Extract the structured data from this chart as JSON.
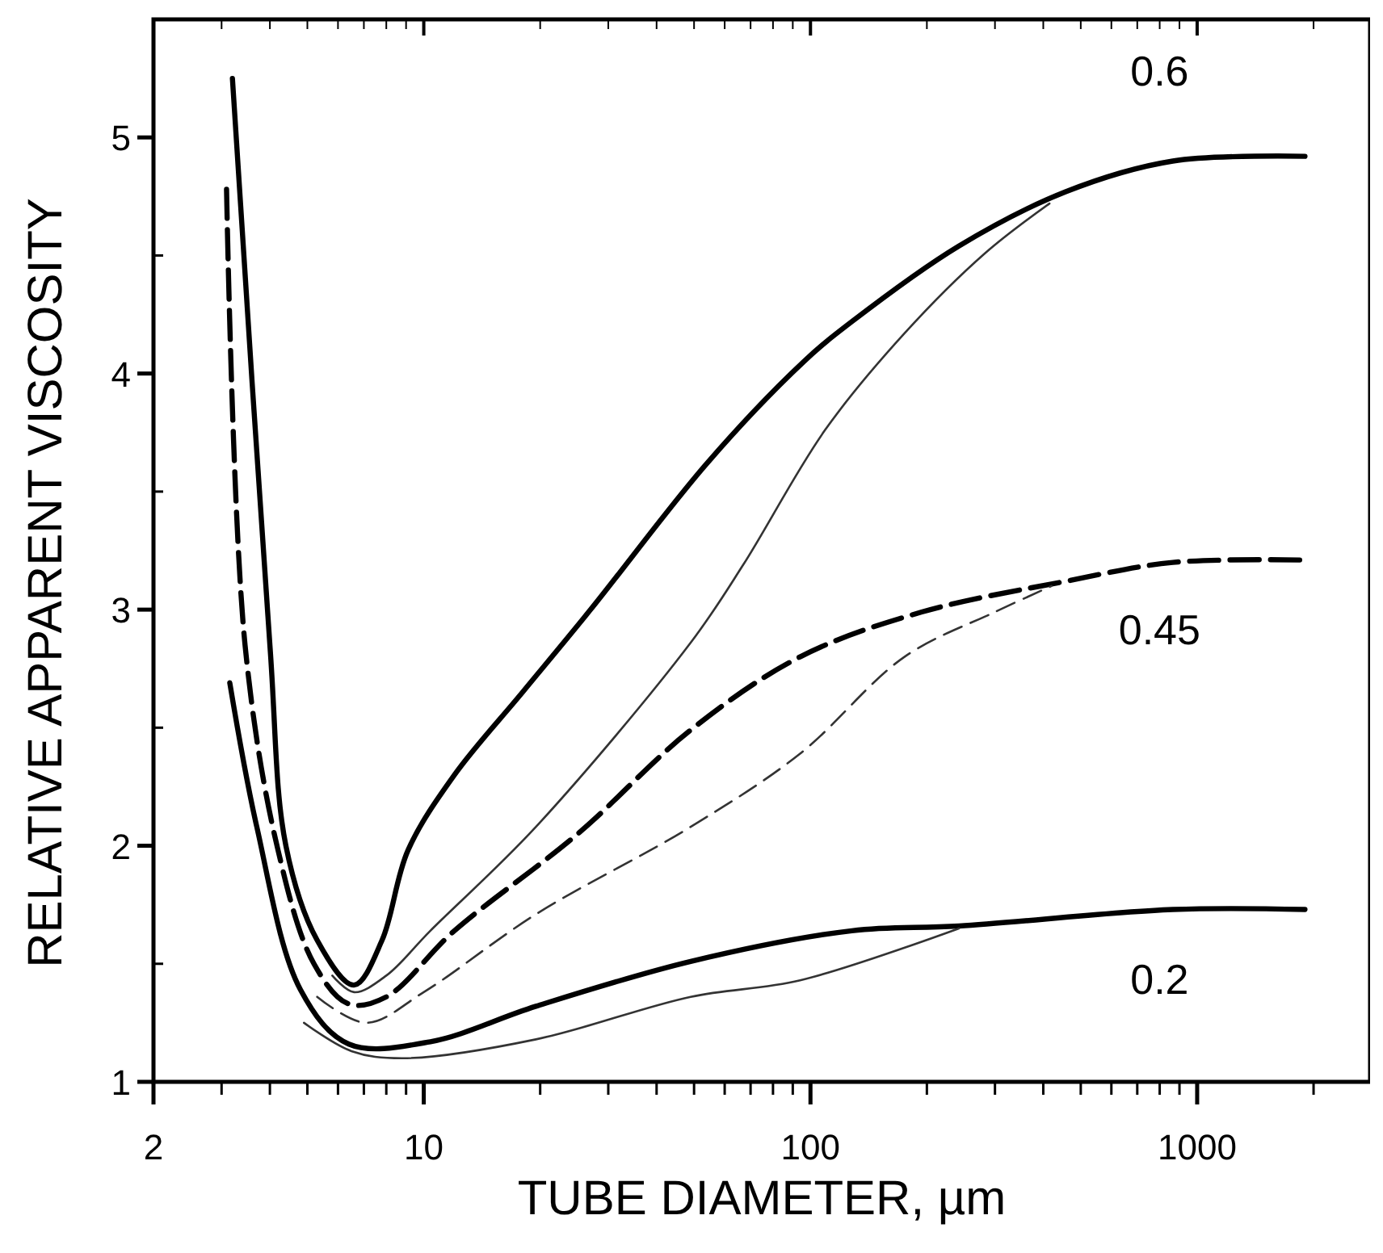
{
  "chart_data": {
    "type": "line",
    "xlabel": "TUBE DIAMETER, µm",
    "ylabel": "RELATIVE APPARENT VISCOSITY",
    "log": "x",
    "xlim": [
      2,
      2800
    ],
    "ylim": [
      1,
      5.5
    ],
    "xticks": [
      2,
      {
        "value": 3,
        "label": null
      },
      {
        "value": 4,
        "label": null
      },
      {
        "value": 5,
        "label": null
      },
      {
        "value": 6,
        "label": null
      },
      {
        "value": 7,
        "label": null
      },
      {
        "value": 8,
        "label": null
      },
      {
        "value": 9,
        "label": null
      },
      10,
      {
        "value": 20,
        "label": null
      },
      {
        "value": 30,
        "label": null
      },
      {
        "value": 40,
        "label": null
      },
      {
        "value": 50,
        "label": null
      },
      {
        "value": 60,
        "label": null
      },
      {
        "value": 70,
        "label": null
      },
      {
        "value": 80,
        "label": null
      },
      {
        "value": 90,
        "label": null
      },
      100,
      {
        "value": 200,
        "label": null
      },
      {
        "value": 300,
        "label": null
      },
      {
        "value": 400,
        "label": null
      },
      {
        "value": 500,
        "label": null
      },
      {
        "value": 600,
        "label": null
      },
      {
        "value": 700,
        "label": null
      },
      {
        "value": 800,
        "label": null
      },
      {
        "value": 900,
        "label": null
      },
      1000,
      {
        "value": 2000,
        "label": null
      }
    ],
    "yticks": [
      1,
      {
        "value": 1.5,
        "label": null
      },
      2,
      {
        "value": 2.5,
        "label": null
      },
      3,
      {
        "value": 3.5,
        "label": null
      },
      4,
      {
        "value": 4.5,
        "label": null
      },
      5
    ],
    "series": [
      {
        "name": "0.6",
        "color": "#000000",
        "line_style": "solid",
        "x": [
          3.2,
          4.0,
          4.4,
          5.3,
          6.6,
          7.8,
          9.1,
          12,
          18,
          27,
          54,
          96,
          128,
          242,
          457,
          865,
          1900
        ],
        "values": [
          5.25,
          2.85,
          2.0,
          1.6,
          1.41,
          1.6,
          1.98,
          2.3,
          2.65,
          3.0,
          3.62,
          4.05,
          4.22,
          4.54,
          4.77,
          4.9,
          4.92
        ]
      },
      {
        "color": "#333333",
        "line_style": "solid",
        "x": [
          5.8,
          6.6,
          8,
          10.4,
          19.5,
          49,
          67,
          109,
          175,
          283,
          415
        ],
        "values": [
          1.45,
          1.38,
          1.45,
          1.64,
          2.08,
          2.86,
          3.19,
          3.76,
          4.17,
          4.51,
          4.72
        ]
      },
      {
        "name": "0.45",
        "color": "#000000",
        "line_style": "dashed",
        "x": [
          3.09,
          3.45,
          4.2,
          5.2,
          6.4,
          8,
          12,
          25,
          49,
          94,
          194,
          457,
          865,
          1900
        ],
        "values": [
          4.78,
          2.85,
          1.98,
          1.5,
          1.33,
          1.36,
          1.64,
          2.05,
          2.49,
          2.8,
          2.99,
          3.12,
          3.2,
          3.21
        ]
      },
      {
        "color": "#333333",
        "line_style": "dashed",
        "x": [
          5.3,
          7.1,
          10,
          19.5,
          49,
          94,
          175,
          300,
          420
        ],
        "values": [
          1.36,
          1.25,
          1.38,
          1.71,
          2.08,
          2.39,
          2.8,
          2.99,
          3.1
        ]
      },
      {
        "name": "0.2",
        "color": "#000000",
        "line_style": "solid",
        "x": [
          3.15,
          3.7,
          4.8,
          6.4,
          10.4,
          19.5,
          49,
          128,
          242,
          865,
          1900
        ],
        "values": [
          2.69,
          2.08,
          1.39,
          1.16,
          1.17,
          1.32,
          1.51,
          1.64,
          1.66,
          1.73,
          1.73
        ]
      },
      {
        "color": "#333333",
        "line_style": "solid",
        "x": [
          4.9,
          6.5,
          8.8,
          19.5,
          49,
          94,
          242
        ],
        "values": [
          1.25,
          1.13,
          1.1,
          1.18,
          1.36,
          1.43,
          1.65
        ]
      }
    ]
  }
}
